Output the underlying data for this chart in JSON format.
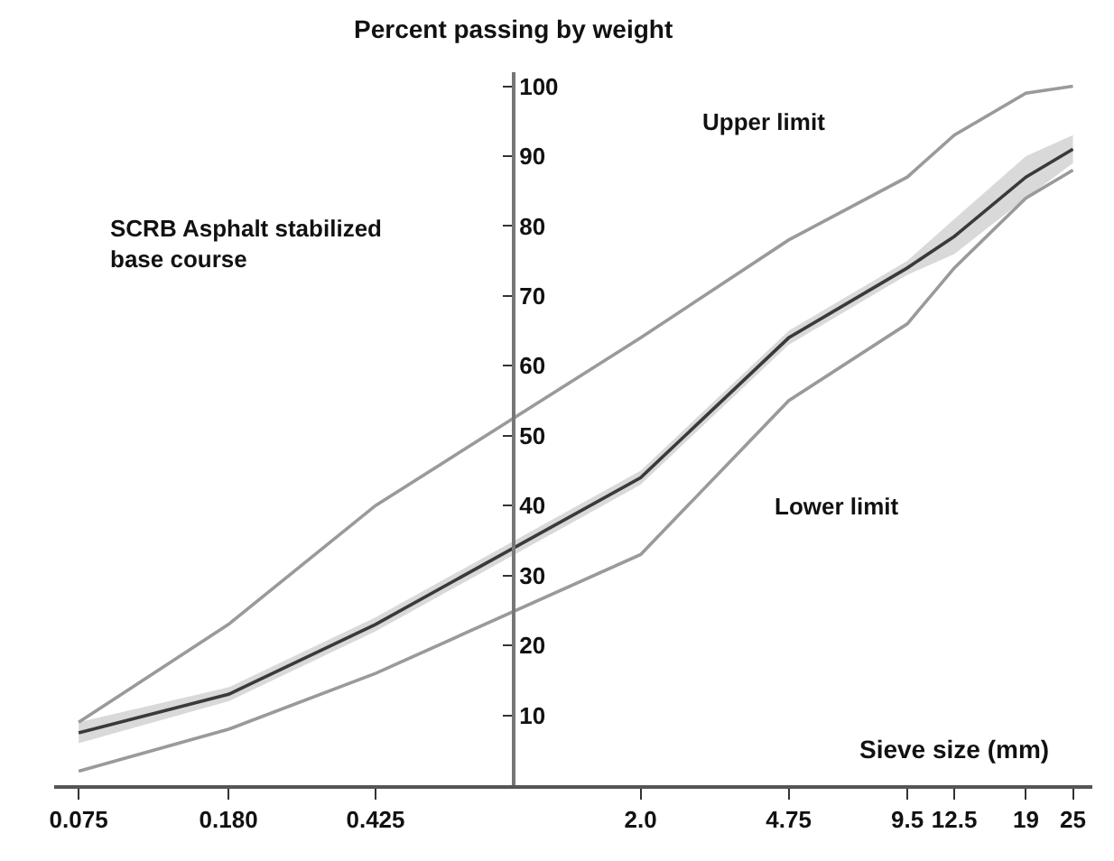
{
  "chart_data": {
    "type": "line",
    "ylabel": "Percent passing by weight",
    "xlabel": "Sieve size (mm)",
    "x": [
      0.075,
      0.18,
      0.425,
      2.0,
      4.75,
      9.5,
      12.5,
      19,
      25
    ],
    "log": "x",
    "xlim": [
      0.065,
      28
    ],
    "xticks": [
      {
        "value": 0.075,
        "label": "0.075"
      },
      {
        "value": 0.18,
        "label": "0.180"
      },
      {
        "value": 0.425,
        "label": "0.425"
      },
      {
        "value": 2.0,
        "label": "2.0"
      },
      4.75,
      9.5,
      12.5,
      19,
      25
    ],
    "ylim": [
      0,
      102
    ],
    "yticks": [
      10,
      20,
      30,
      40,
      50,
      60,
      70,
      80,
      90,
      100
    ],
    "marker": "none",
    "line_style": "solid",
    "series": [
      {
        "color": "#9a9a9a",
        "values": [
          9,
          23,
          40,
          64,
          78,
          87,
          93,
          99,
          100
        ]
      },
      {
        "color": "#3a3a3a",
        "values": [
          7.5,
          13,
          23,
          44,
          64,
          74,
          78.5,
          87,
          91
        ],
        "lower": [
          6,
          12,
          22,
          43,
          63,
          73,
          76,
          84,
          89
        ],
        "upper": [
          9,
          14,
          24,
          45,
          65,
          75,
          81,
          90,
          93
        ]
      },
      {
        "color": "#9a9a9a",
        "values": [
          2,
          8,
          16,
          33,
          55,
          66,
          74,
          84,
          88
        ]
      }
    ],
    "annotations": [
      "Upper limit",
      "Lower limit",
      "SCRB Asphalt stabilized\nbase course"
    ]
  }
}
